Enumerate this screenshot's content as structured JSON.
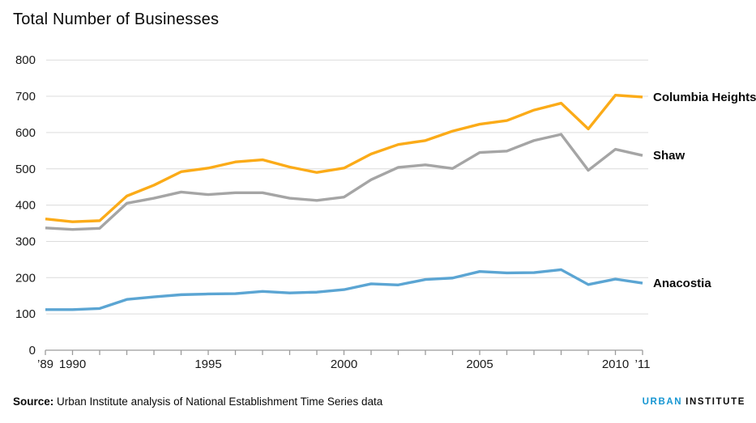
{
  "title": "Total Number of Businesses",
  "source": {
    "label": "Source:",
    "text": " Urban Institute analysis of National Establishment Time Series data"
  },
  "branding": {
    "urban": "URBAN",
    "institute": "INSTITUTE",
    "urban_color": "#1696d2"
  },
  "colors": {
    "grid": "#dcdcdc",
    "axis": "#9b9b9b",
    "tick_text": "#1a1a1a",
    "label_text": "#0a0a0a"
  },
  "chart_data": {
    "type": "line",
    "x": [
      1989,
      1990,
      1991,
      1992,
      1993,
      1994,
      1995,
      1996,
      1997,
      1998,
      1999,
      2000,
      2001,
      2002,
      2003,
      2004,
      2005,
      2006,
      2007,
      2008,
      2009,
      2010,
      2011
    ],
    "series": [
      {
        "name": "Columbia Heights",
        "color": "#fbab18",
        "values": [
          362,
          354,
          357,
          425,
          455,
          492,
          502,
          519,
          525,
          505,
          490,
          502,
          541,
          567,
          578,
          604,
          623,
          633,
          662,
          681,
          610,
          703,
          698
        ]
      },
      {
        "name": "Shaw",
        "color": "#a5a5a5",
        "values": [
          337,
          333,
          336,
          405,
          419,
          436,
          429,
          434,
          434,
          419,
          413,
          422,
          470,
          504,
          511,
          501,
          545,
          549,
          578,
          595,
          496,
          554,
          537
        ]
      },
      {
        "name": "Anacostia",
        "color": "#5ba5d3",
        "values": [
          112,
          112,
          115,
          140,
          147,
          153,
          155,
          156,
          162,
          158,
          160,
          167,
          183,
          180,
          195,
          199,
          217,
          213,
          214,
          222,
          181,
          196,
          185
        ]
      }
    ],
    "title": "Total Number of Businesses",
    "xlabel": "",
    "ylabel": "",
    "ylim": [
      0,
      800
    ],
    "yticks": [
      0,
      100,
      200,
      300,
      400,
      500,
      600,
      700,
      800
    ],
    "xtick_labels": [
      {
        "year": 1989,
        "label": "’89"
      },
      {
        "year": 1990,
        "label": "1990"
      },
      {
        "year": 1995,
        "label": "1995"
      },
      {
        "year": 2000,
        "label": "2000"
      },
      {
        "year": 2005,
        "label": "2005"
      },
      {
        "year": 2010,
        "label": "2010"
      },
      {
        "year": 2011,
        "label": "’11"
      }
    ],
    "grid": true,
    "legend_position": "right-end-labels"
  }
}
